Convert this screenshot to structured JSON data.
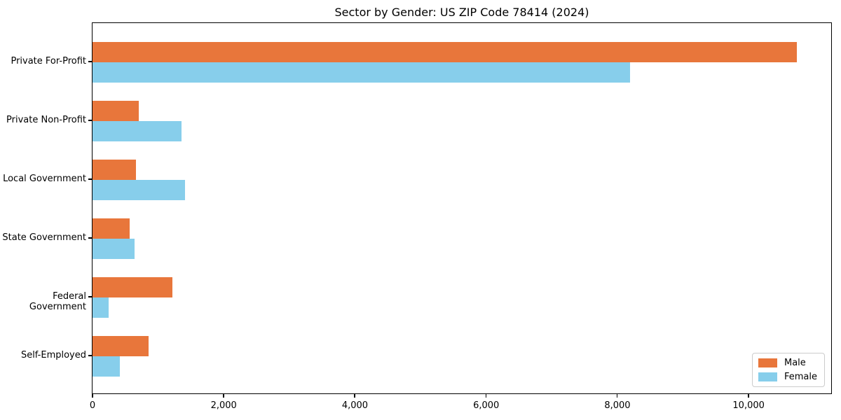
{
  "title": "Sector by Gender: US ZIP Code 78414 (2024)",
  "chart_data": {
    "type": "bar",
    "orientation": "horizontal",
    "title": "Sector by Gender: US ZIP Code 78414 (2024)",
    "categories": [
      "Private For-Profit",
      "Private Non-Profit",
      "Local Government",
      "State Government",
      "Federal Government",
      "Self-Employed"
    ],
    "series": [
      {
        "name": "Male",
        "color": "#e8763b",
        "values": [
          10740,
          705,
          665,
          570,
          1220,
          855
        ]
      },
      {
        "name": "Female",
        "color": "#87ceeb",
        "values": [
          8190,
          1355,
          1410,
          640,
          250,
          420
        ]
      }
    ],
    "xlabel": "",
    "ylabel": "",
    "xlim": [
      0,
      11280
    ],
    "xticks": [
      0,
      2000,
      4000,
      6000,
      8000,
      10000
    ],
    "xtick_labels": [
      "0",
      "2,000",
      "4,000",
      "6,000",
      "8,000",
      "10,000"
    ],
    "grid": false,
    "legend": {
      "position": "lower right",
      "entries": [
        "Male",
        "Female"
      ]
    }
  }
}
